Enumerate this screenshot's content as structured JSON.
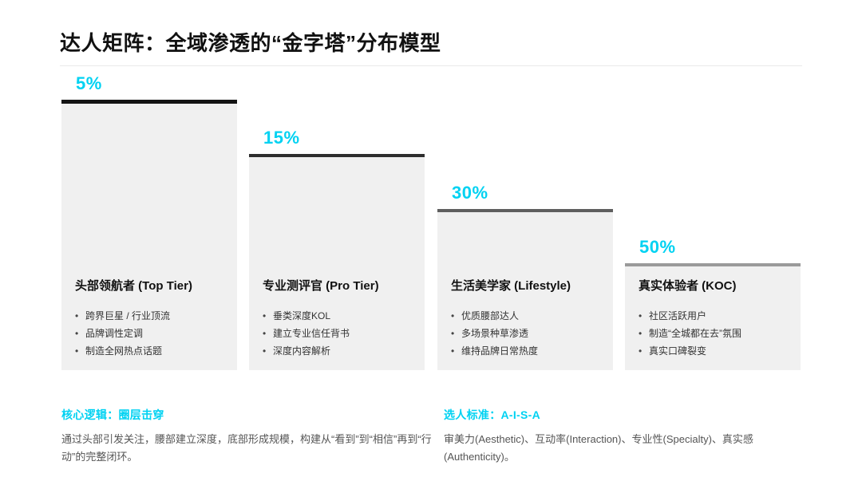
{
  "slide": {
    "title": "达人矩阵：全域渗透的“金字塔”分布模型",
    "accent_color": "#00d2f2"
  },
  "chart_data": {
    "type": "bar",
    "categories": [
      "头部领航者 (Top Tier)",
      "专业测评官 (Pro Tier)",
      "生活美学家 (Lifestyle)",
      "真实体验者 (KOC)"
    ],
    "values": [
      5,
      15,
      30,
      50
    ],
    "value_labels": [
      "5%",
      "15%",
      "30%",
      "50%"
    ],
    "title": "达人矩阵：全域渗透的“金字塔”分布模型"
  },
  "tiers": [
    {
      "percent": "5%",
      "name": "头部领航者 (Top Tier)",
      "border_color": "#141414",
      "bullets": [
        "跨界巨星 / 行业顶流",
        "品牌调性定调",
        "制造全网热点话题"
      ]
    },
    {
      "percent": "15%",
      "name": "专业测评官 (Pro Tier)",
      "border_color": "#2e2e2e",
      "bullets": [
        "垂类深度KOL",
        "建立专业信任背书",
        "深度内容解析"
      ]
    },
    {
      "percent": "30%",
      "name": "生活美学家 (Lifestyle)",
      "border_color": "#5f5f5f",
      "bullets": [
        "优质腰部达人",
        "多场景种草渗透",
        "维持品牌日常热度"
      ]
    },
    {
      "percent": "50%",
      "name": "真实体验者 (KOC)",
      "border_color": "#9a9a9a",
      "bullets": [
        "社区活跃用户",
        "制造“全城都在去”氛围",
        "真实口碑裂变"
      ]
    }
  ],
  "footers": [
    {
      "heading": "核心逻辑：圈层击穿",
      "body": "通过头部引发关注，腰部建立深度，底部形成规模，构建从“看到”到“相信”再到“行动”的完整闭环。"
    },
    {
      "heading": "选人标准：A-I-S-A",
      "body": "审美力(Aesthetic)、互动率(Interaction)、专业性(Specialty)、真实感(Authenticity)。"
    }
  ]
}
